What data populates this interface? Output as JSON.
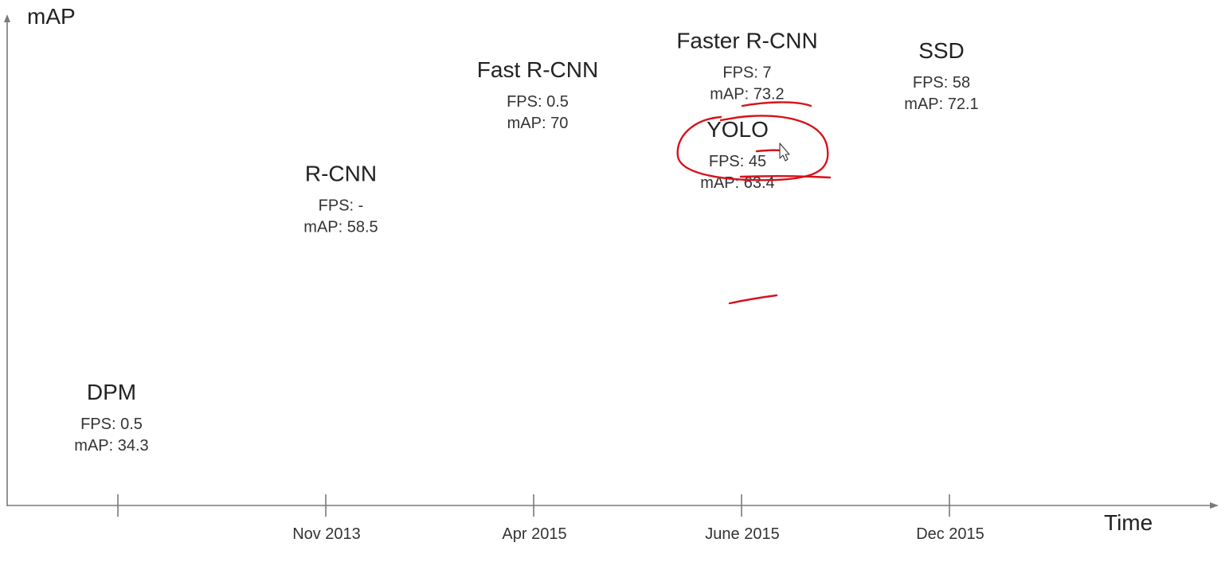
{
  "chart_data": {
    "type": "scatter",
    "title": "",
    "xlabel": "Time",
    "ylabel": "mAP",
    "grid": false,
    "legend": "none",
    "x_ticks": [
      "",
      "Nov 2013",
      "Apr 2015",
      "June 2015",
      "Dec 2015"
    ],
    "points": [
      {
        "name": "DPM",
        "x_tick": 0,
        "fps_text": "FPS: 0.5",
        "map_text": "mAP: 34.3",
        "fps": 0.5,
        "map": 34.3
      },
      {
        "name": "R-CNN",
        "x_tick": 1,
        "fps_text": "FPS: -",
        "map_text": "mAP: 58.5",
        "fps": null,
        "map": 58.5
      },
      {
        "name": "Fast R-CNN",
        "x_tick": 2,
        "fps_text": "FPS: 0.5",
        "map_text": "mAP: 70",
        "fps": 0.5,
        "map": 70
      },
      {
        "name": "Faster R-CNN",
        "x_tick": 3,
        "fps_text": "FPS: 7",
        "map_text": "mAP: 73.2",
        "fps": 7,
        "map": 73.2
      },
      {
        "name": "YOLO",
        "x_tick": 3,
        "fps_text": "FPS: 45",
        "map_text": "mAP: 63.4",
        "fps": 45,
        "map": 63.4
      },
      {
        "name": "SSD",
        "x_tick": 4,
        "fps_text": "FPS: 58",
        "map_text": "mAP: 72.1",
        "fps": 58,
        "map": 72.1
      }
    ],
    "annotation_color": "#d8121b"
  }
}
